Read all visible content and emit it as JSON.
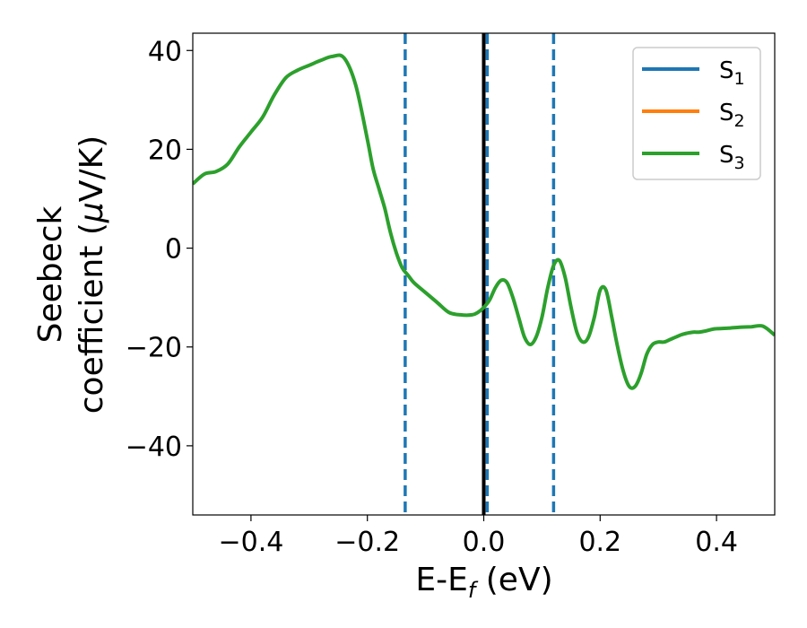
{
  "chart_data": {
    "type": "line",
    "xlabel": "E-E",
    "xlabel_sub": "f",
    "xlabel_unit": " (eV)",
    "ylabel_line1": "Seebeck",
    "ylabel_line2_pre": "coefficient  (",
    "ylabel_mu": "μ",
    "ylabel_line2_post": "V/K)",
    "xlim": [
      -0.5,
      0.5
    ],
    "ylim": [
      -54,
      43.5
    ],
    "xticks": [
      -0.4,
      -0.2,
      0.0,
      0.2,
      0.4
    ],
    "xtick_labels": [
      "−0.4",
      "−0.2",
      "0.0",
      "0.2",
      "0.4"
    ],
    "yticks": [
      -40,
      -20,
      0,
      20,
      40
    ],
    "ytick_labels": [
      "−40",
      "−20",
      "0",
      "20",
      "40"
    ],
    "grid": false,
    "legend_position": "upper right",
    "legend": [
      {
        "base": "S",
        "sub": "1",
        "color": "#1f77b4"
      },
      {
        "base": "S",
        "sub": "2",
        "color": "#ff7f0e"
      },
      {
        "base": "S",
        "sub": "3",
        "color": "#2ca02c"
      }
    ],
    "series": [
      {
        "color": "#2ca02c",
        "x": [
          -0.5,
          -0.48,
          -0.46,
          -0.44,
          -0.42,
          -0.4,
          -0.38,
          -0.36,
          -0.34,
          -0.32,
          -0.3,
          -0.28,
          -0.26,
          -0.24,
          -0.22,
          -0.2,
          -0.19,
          -0.18,
          -0.17,
          -0.16,
          -0.15,
          -0.14,
          -0.13,
          -0.12,
          -0.1,
          -0.08,
          -0.06,
          -0.04,
          -0.02,
          -0.01,
          0.0,
          0.01,
          0.02,
          0.03,
          0.04,
          0.05,
          0.06,
          0.07,
          0.08,
          0.09,
          0.1,
          0.11,
          0.12,
          0.13,
          0.14,
          0.15,
          0.16,
          0.17,
          0.18,
          0.19,
          0.2,
          0.21,
          0.22,
          0.23,
          0.24,
          0.25,
          0.26,
          0.27,
          0.28,
          0.29,
          0.3,
          0.31,
          0.32,
          0.33,
          0.34,
          0.35,
          0.36,
          0.37,
          0.38,
          0.39,
          0.4,
          0.42,
          0.44,
          0.46,
          0.48,
          0.5
        ],
        "y": [
          13,
          15,
          15.5,
          17,
          20.5,
          23.5,
          26.5,
          31,
          34.5,
          36,
          37,
          38,
          38.8,
          38.5,
          33,
          22,
          16,
          12,
          8,
          3,
          -1,
          -4,
          -5.5,
          -7,
          -9,
          -11,
          -13,
          -13.5,
          -13.5,
          -13,
          -12,
          -10.5,
          -8,
          -6.5,
          -7,
          -10,
          -14,
          -18,
          -19.5,
          -18,
          -14,
          -8,
          -3.5,
          -2.5,
          -6,
          -12,
          -17,
          -19,
          -18,
          -14,
          -8.5,
          -8.5,
          -14,
          -20,
          -25,
          -28,
          -28,
          -25.5,
          -21.5,
          -19.5,
          -19,
          -19,
          -18.5,
          -18,
          -17.5,
          -17.2,
          -17,
          -17,
          -16.8,
          -16.5,
          -16.3,
          -16.2,
          -16,
          -15.9,
          -15.8,
          -17.6
        ]
      }
    ],
    "vlines": [
      {
        "x": -0.135,
        "color": "#1f77b4",
        "style": "dashed"
      },
      {
        "x": 0.006,
        "color": "#1f77b4",
        "style": "dashed"
      },
      {
        "x": 0.12,
        "color": "#1f77b4",
        "style": "dashed"
      },
      {
        "x": 0.0,
        "color": "#000000",
        "style": "solid"
      }
    ]
  }
}
